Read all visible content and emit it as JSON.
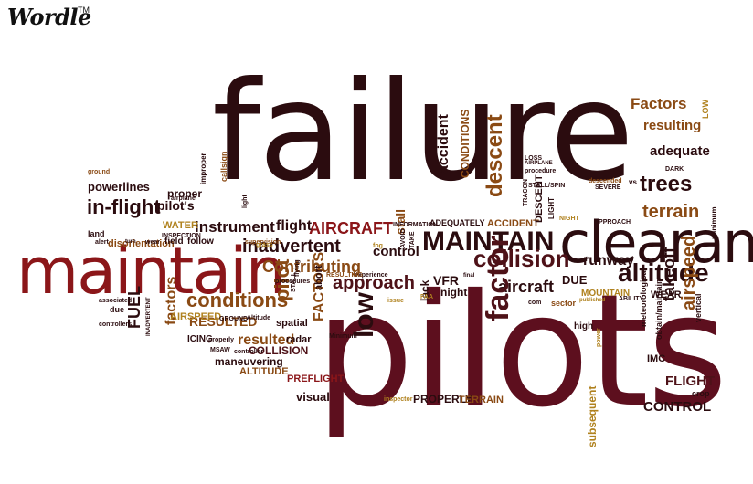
{
  "logo": {
    "text": "Wordle",
    "trademark": "TM"
  },
  "palette": {
    "dark": "#2b0c0f",
    "maroon": "#4e1218",
    "red": "#8b1619",
    "brown": "#8a4a14",
    "gold": "#b0821f",
    "wine": "#5d0f1e"
  },
  "words": [
    {
      "t": "failure",
      "c": "dark",
      "big": true
    },
    {
      "t": "pilots",
      "c": "wine",
      "big": true
    },
    {
      "t": "maintain",
      "c": "red",
      "big": true
    },
    {
      "t": "clearance",
      "c": "dark",
      "big": true
    },
    {
      "t": "MAINTAIN",
      "c": "dark"
    },
    {
      "t": "altitude",
      "c": "dark"
    },
    {
      "t": "collision",
      "c": "maroon"
    },
    {
      "t": "conditions",
      "c": "brown"
    },
    {
      "t": "in-flight",
      "c": "dark"
    },
    {
      "t": "instrument",
      "c": "dark"
    },
    {
      "t": "pilot's",
      "c": "dark"
    },
    {
      "t": "powerlines",
      "c": "dark"
    },
    {
      "t": "trees",
      "c": "dark"
    },
    {
      "t": "terrain",
      "c": "brown"
    },
    {
      "t": "adequate",
      "c": "dark"
    },
    {
      "t": "resulting",
      "c": "brown"
    },
    {
      "t": "Factors",
      "c": "brown"
    },
    {
      "t": "takeoff",
      "c": "dark"
    },
    {
      "t": "airspeed",
      "c": "brown"
    },
    {
      "t": "runway",
      "c": "dark"
    },
    {
      "t": "DUE",
      "c": "dark"
    },
    {
      "t": "aircraft",
      "c": "dark"
    },
    {
      "t": "approach",
      "c": "maroon"
    },
    {
      "t": "control",
      "c": "dark"
    },
    {
      "t": "descent",
      "c": "brown"
    },
    {
      "t": "factor",
      "c": "maroon"
    },
    {
      "t": "low",
      "c": "dark"
    },
    {
      "t": "pilot",
      "c": "brown"
    },
    {
      "t": "FACTORS",
      "c": "brown"
    },
    {
      "t": "inadvertent",
      "c": "dark"
    },
    {
      "t": "Contributing",
      "c": "brown"
    },
    {
      "t": "AIRCRAFT",
      "c": "red"
    },
    {
      "t": "flight",
      "c": "dark"
    },
    {
      "t": "accident",
      "c": "dark"
    },
    {
      "t": "CONDITIONS",
      "c": "brown"
    },
    {
      "t": "stall",
      "c": "brown"
    },
    {
      "t": "FUEL",
      "c": "dark"
    },
    {
      "t": "factors",
      "c": "brown"
    },
    {
      "t": "RESULTED",
      "c": "brown"
    },
    {
      "t": "resulted",
      "c": "brown"
    },
    {
      "t": "disorientation",
      "c": "brown"
    },
    {
      "t": "COLLISION",
      "c": "maroon"
    },
    {
      "t": "maneuvering",
      "c": "dark"
    },
    {
      "t": "ALTITUDE",
      "c": "brown"
    },
    {
      "t": "PREFLIGHT",
      "c": "red"
    },
    {
      "t": "visual",
      "c": "dark"
    },
    {
      "t": "PROPERLY",
      "c": "dark"
    },
    {
      "t": "TERRAIN",
      "c": "brown"
    },
    {
      "t": "subsequent",
      "c": "gold"
    },
    {
      "t": "CONTROL",
      "c": "dark"
    },
    {
      "t": "FLIGHT",
      "c": "maroon"
    },
    {
      "t": "IMC",
      "c": "dark"
    },
    {
      "t": "WEAR",
      "c": "dark"
    },
    {
      "t": "MOUNTAIN",
      "c": "gold"
    },
    {
      "t": "VFR",
      "c": "dark"
    },
    {
      "t": "night",
      "c": "dark"
    },
    {
      "t": "lack",
      "c": "dark"
    },
    {
      "t": "abort",
      "c": "dark"
    },
    {
      "t": "radar",
      "c": "dark"
    },
    {
      "t": "spatial",
      "c": "dark"
    },
    {
      "t": "ICING",
      "c": "dark"
    },
    {
      "t": "AIRSPEED",
      "c": "gold"
    },
    {
      "t": "proper",
      "c": "dark"
    },
    {
      "t": "land",
      "c": "dark"
    },
    {
      "t": "WATER",
      "c": "gold"
    },
    {
      "t": "follow",
      "c": "dark"
    },
    {
      "t": "ADEQUATELY",
      "c": "dark"
    },
    {
      "t": "ACCIDENT",
      "c": "brown"
    },
    {
      "t": "LOSS",
      "c": "dark"
    },
    {
      "t": "AIRPLANE",
      "c": "dark"
    },
    {
      "t": "procedure",
      "c": "dark"
    },
    {
      "t": "DESCENT",
      "c": "dark"
    },
    {
      "t": "NIGHT",
      "c": "gold"
    },
    {
      "t": "APPROACH",
      "c": "dark"
    },
    {
      "t": "SEVERE",
      "c": "dark"
    },
    {
      "t": "DARK",
      "c": "dark"
    },
    {
      "t": "LOW",
      "c": "gold"
    },
    {
      "t": "minimum",
      "c": "dark"
    },
    {
      "t": "high",
      "c": "dark"
    },
    {
      "t": "crop",
      "c": "dark"
    },
    {
      "t": "STALL/SPIN",
      "c": "dark"
    },
    {
      "t": "INFORMATION",
      "c": "dark"
    },
    {
      "t": "experience",
      "c": "dark"
    },
    {
      "t": "RESULTING",
      "c": "brown"
    },
    {
      "t": "sector",
      "c": "brown"
    },
    {
      "t": "published",
      "c": "gold"
    },
    {
      "t": "final",
      "c": "dark"
    },
    {
      "t": "issue",
      "c": "gold"
    },
    {
      "t": "FAA",
      "c": "gold"
    },
    {
      "t": "Minimum",
      "c": "dark"
    },
    {
      "t": "inspector",
      "c": "gold"
    },
    {
      "t": "controller",
      "c": "dark"
    },
    {
      "t": "MSAW",
      "c": "dark"
    },
    {
      "t": "properly",
      "c": "dark"
    },
    {
      "t": "GROUND",
      "c": "dark"
    },
    {
      "t": "Altitude",
      "c": "dark"
    },
    {
      "t": "associated",
      "c": "dark"
    },
    {
      "t": "due",
      "c": "dark"
    },
    {
      "t": "controllers",
      "c": "dark"
    },
    {
      "t": "INADVERTENT",
      "c": "dark"
    },
    {
      "t": "supervision",
      "c": "brown"
    },
    {
      "t": "field",
      "c": "dark"
    },
    {
      "t": "alert",
      "c": "dark"
    },
    {
      "t": "ground",
      "c": "brown"
    },
    {
      "t": "airplane",
      "c": "dark"
    },
    {
      "t": "INSPECTION",
      "c": "dark"
    },
    {
      "t": "light",
      "c": "dark"
    },
    {
      "t": "vertical",
      "c": "dark"
    },
    {
      "t": "vs",
      "c": "dark"
    },
    {
      "t": "descended",
      "c": "brown"
    },
    {
      "t": "power",
      "c": "gold"
    },
    {
      "t": "obtain/maintain",
      "c": "dark"
    },
    {
      "t": "meteorological",
      "c": "dark"
    },
    {
      "t": "ABILITY",
      "c": "dark"
    },
    {
      "t": "com",
      "c": "dark"
    },
    {
      "t": "LIGHT",
      "c": "dark"
    },
    {
      "t": "AVOID",
      "c": "dark"
    },
    {
      "t": "fog",
      "c": "gold"
    },
    {
      "t": "grass",
      "c": "gold"
    },
    {
      "t": "turn",
      "c": "dark"
    },
    {
      "t": "wear",
      "c": "dark"
    },
    {
      "t": "TAKE",
      "c": "dark"
    },
    {
      "t": "TRACON",
      "c": "dark"
    },
    {
      "t": "STALL",
      "c": "dark"
    },
    {
      "t": "flying",
      "c": "dark"
    },
    {
      "t": "procedures",
      "c": "dark"
    },
    {
      "t": "improper",
      "c": "dark"
    },
    {
      "t": "callsign",
      "c": "brown"
    }
  ]
}
